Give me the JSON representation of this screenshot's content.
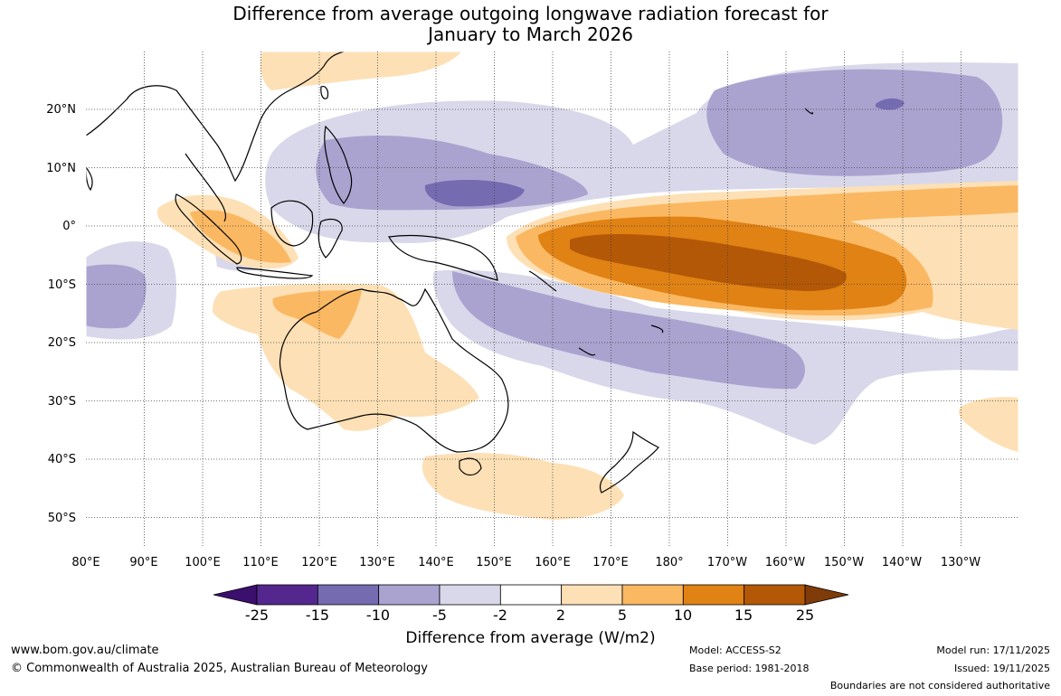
{
  "title": {
    "line1": "Difference from average outgoing longwave radiation forecast for",
    "line2": "January to March 2026"
  },
  "map": {
    "lon_labels": [
      "80°E",
      "90°E",
      "100°E",
      "110°E",
      "120°E",
      "130°E",
      "140°E",
      "150°E",
      "160°E",
      "170°E",
      "180°",
      "170°W",
      "160°W",
      "150°W",
      "140°W",
      "130°W"
    ],
    "lat_labels": [
      "20°N",
      "10°N",
      "0°",
      "10°S",
      "20°S",
      "30°S",
      "40°S",
      "50°S"
    ],
    "lon_range": [
      "80°E",
      "125°W"
    ],
    "lat_range": [
      "30°N",
      "55°S"
    ]
  },
  "colorbar": {
    "ticks": [
      "-25",
      "-15",
      "-10",
      "-5",
      "-2",
      "2",
      "5",
      "10",
      "15",
      "25"
    ],
    "colors": [
      "#54278f",
      "#756bb1",
      "#aaa3d0",
      "#d8d8ea",
      "#ffffff",
      "#fde0b5",
      "#fbb862",
      "#e08214",
      "#b35806"
    ],
    "under_color": "#3b0f6e",
    "over_color": "#7f3b08",
    "label": "Difference from average (W/m2)"
  },
  "footer": {
    "url": "www.bom.gov.au/climate",
    "copyright": "© Commonwealth of Australia 2025, Australian Bureau of Meteorology",
    "model": "Model: ACCESS-S2",
    "base_period": "Base period: 1981-2018",
    "model_run": "Model run: 17/11/2025",
    "issued": "Issued: 19/11/2025",
    "disclaimer": "Boundaries are not considered authoritative"
  }
}
